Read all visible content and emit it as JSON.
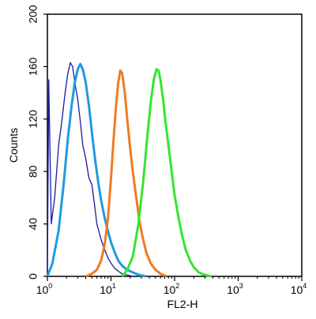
{
  "chart_data": {
    "type": "line",
    "xlabel": "FL2-H",
    "ylabel": "Counts",
    "x_scale": "log",
    "xlim": [
      1,
      10000
    ],
    "ylim": [
      0,
      200
    ],
    "x_ticks": [
      {
        "value": 1,
        "base": "10",
        "exp": "0"
      },
      {
        "value": 10,
        "base": "10",
        "exp": "1"
      },
      {
        "value": 100,
        "base": "10",
        "exp": "2"
      },
      {
        "value": 1000,
        "base": "10",
        "exp": "3"
      },
      {
        "value": 10000,
        "base": "10",
        "exp": "4"
      }
    ],
    "y_ticks": [
      0,
      40,
      80,
      120,
      160,
      200
    ],
    "grid": false,
    "legend": "none",
    "series": [
      {
        "color": "#1a1a9e",
        "stroke": "thin",
        "x": [
          1.0,
          1.05,
          1.15,
          1.3,
          1.5,
          1.7,
          1.9,
          2.1,
          2.3,
          2.5,
          2.7,
          3.0,
          3.3,
          3.6,
          4.0,
          4.5,
          5.0,
          5.5,
          6.0,
          7.0,
          8.0,
          9.0,
          10.0,
          11.5,
          13.0,
          15.0,
          18.0,
          22.0
        ],
        "y": [
          0,
          150,
          40,
          60,
          100,
          120,
          140,
          155,
          163,
          160,
          148,
          135,
          118,
          100,
          90,
          75,
          70,
          55,
          40,
          28,
          20,
          14,
          10,
          6,
          4,
          2,
          1,
          0
        ]
      },
      {
        "color": "#1e9be0",
        "stroke": "thick",
        "x": [
          1.0,
          1.2,
          1.5,
          1.8,
          2.1,
          2.4,
          2.7,
          3.0,
          3.3,
          3.6,
          4.0,
          4.5,
          5.0,
          5.6,
          6.3,
          7.0,
          8.0,
          9.0,
          10.0,
          11.5,
          13.0,
          15.0,
          18.0,
          22.0,
          28.0,
          35.0
        ],
        "y": [
          0,
          10,
          35,
          70,
          105,
          130,
          148,
          158,
          162,
          158,
          148,
          130,
          110,
          90,
          72,
          58,
          44,
          34,
          26,
          18,
          12,
          8,
          5,
          3,
          1,
          0
        ]
      },
      {
        "color": "#f07a22",
        "stroke": "thick",
        "x": [
          4.0,
          5.0,
          6.0,
          7.0,
          8.0,
          9.0,
          10.0,
          11.0,
          12.0,
          13.0,
          14.0,
          15.0,
          16.5,
          18.0,
          20.0,
          22.0,
          25.0,
          28.0,
          32.0,
          36.0,
          42.0,
          50.0,
          60.0,
          75.0
        ],
        "y": [
          0,
          2,
          5,
          12,
          25,
          45,
          75,
          105,
          130,
          148,
          157,
          155,
          140,
          120,
          98,
          80,
          60,
          42,
          28,
          18,
          10,
          5,
          2,
          0
        ]
      },
      {
        "color": "#33e62e",
        "stroke": "thick",
        "x": [
          15.0,
          18.0,
          22.0,
          27.0,
          32.0,
          37.0,
          42.0,
          47.0,
          52.0,
          56.0,
          60.0,
          66.0,
          72.0,
          80.0,
          90.0,
          100.0,
          115.0,
          130.0,
          150.0,
          175.0,
          200.0,
          240.0,
          300.0,
          380.0
        ],
        "y": [
          0,
          5,
          15,
          40,
          72,
          105,
          132,
          150,
          158,
          157,
          150,
          135,
          118,
          100,
          80,
          62,
          45,
          32,
          20,
          12,
          7,
          3,
          1,
          0
        ]
      }
    ]
  }
}
